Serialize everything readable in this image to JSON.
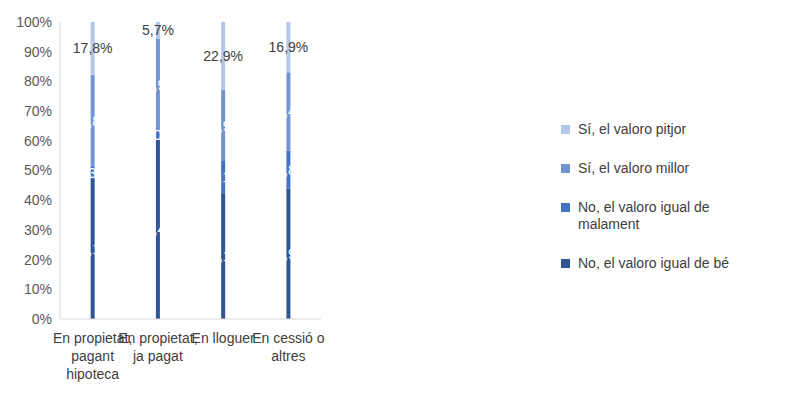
{
  "chart_data": {
    "type": "bar",
    "stacked": true,
    "categories": [
      "En propietat, pagant hipoteca",
      "En propietat, ja pagat",
      "En lloguer",
      "En cessió o altres"
    ],
    "series": [
      {
        "name": "No, el valoro igual de bé",
        "color": "#2F5597",
        "values": [
          47.1,
          60.4,
          42.1,
          43.9
        ],
        "value_labels": [
          "47,1%",
          "60,4%",
          "42,1%",
          "43,9%"
        ]
      },
      {
        "name": "No, el valoro igual de malament",
        "color": "#4472C4",
        "values": [
          4.3,
          3.0,
          11.1,
          12.8
        ],
        "value_labels": [
          "4,3%",
          "3,0%",
          "11,1%",
          "12,8%"
        ]
      },
      {
        "name": "Sí, el valoro millor",
        "color": "#7394D2",
        "values": [
          30.8,
          30.9,
          23.9,
          26.4
        ],
        "value_labels": [
          "30,8%",
          "30,9%",
          "23,9%",
          "26,4%"
        ]
      },
      {
        "name": "Sí, el valoro pitjor",
        "color": "#B4C7E7",
        "values": [
          17.8,
          5.7,
          22.9,
          16.9
        ],
        "value_labels": [
          "17,8%",
          "5,7%",
          "22,9%",
          "16,9%"
        ]
      }
    ],
    "ylim": [
      0,
      100
    ],
    "yticks": [
      {
        "value": 0,
        "label": "0%"
      },
      {
        "value": 10,
        "label": "10%"
      },
      {
        "value": 20,
        "label": "20%"
      },
      {
        "value": 30,
        "label": "30%"
      },
      {
        "value": 40,
        "label": "40%"
      },
      {
        "value": 50,
        "label": "50%"
      },
      {
        "value": 60,
        "label": "60%"
      },
      {
        "value": 70,
        "label": "70%"
      },
      {
        "value": 80,
        "label": "80%"
      },
      {
        "value": 90,
        "label": "90%"
      },
      {
        "value": 100,
        "label": "100%"
      }
    ],
    "grid": false,
    "data_labels": true,
    "legend": "right"
  }
}
